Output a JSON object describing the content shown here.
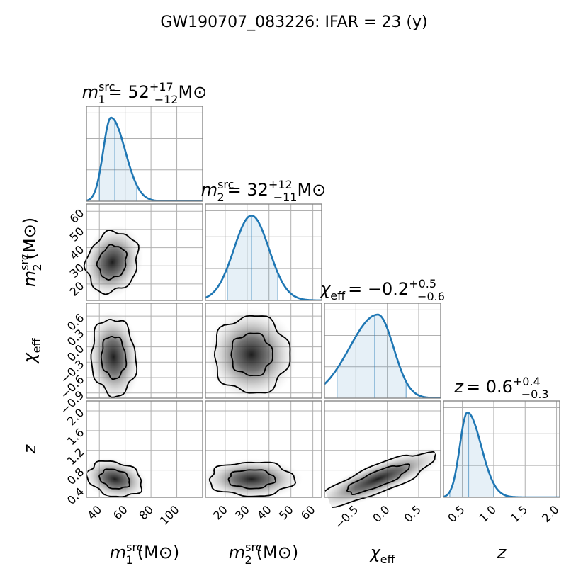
{
  "title": "GW190707_083226: IFAR = 23 (y)",
  "chart_data": {
    "type": "corner",
    "parameters": [
      {
        "key": "m1",
        "symbol": "m",
        "sub": "1",
        "sup": "src",
        "unit": "(M⊙)",
        "range": [
          30,
          120
        ],
        "ticks": [
          40,
          60,
          80,
          100
        ],
        "tick_labels": [
          "40",
          "60",
          "80",
          "100"
        ],
        "median": 52,
        "plus": "+17",
        "minus": "−12",
        "title_unit": "M⊙",
        "title_value": "= 52"
      },
      {
        "key": "m2",
        "symbol": "m",
        "sub": "2",
        "sup": "src",
        "unit": "(M⊙)",
        "range": [
          11,
          64
        ],
        "ticks": [
          20,
          30,
          40,
          50,
          60
        ],
        "tick_labels": [
          "20",
          "30",
          "40",
          "50",
          "60"
        ],
        "median": 32,
        "plus": "+12",
        "minus": "−11",
        "title_unit": "M⊙",
        "title_value": "= 32"
      },
      {
        "key": "chi_eff",
        "symbol": "χ",
        "sub": "eff",
        "sup": "",
        "unit": "",
        "range": [
          -1.0,
          0.85
        ],
        "ticks": [
          -0.5,
          0.0,
          0.5
        ],
        "tick_labels": [
          "−0.5",
          "0.0",
          "0.5"
        ],
        "y_ticks": [
          -0.9,
          -0.6,
          -0.3,
          0.0,
          0.3,
          0.6
        ],
        "y_tick_labels": [
          "−0.9",
          "−0.6",
          "−0.3",
          "0.0",
          "0.3",
          "0.6"
        ],
        "median": -0.2,
        "plus": "+0.5",
        "minus": "−0.6",
        "title_unit": "",
        "title_value": "= −0.2"
      },
      {
        "key": "z",
        "symbol": "z",
        "sub": "",
        "sup": "",
        "unit": "",
        "range": [
          0.2,
          2.05
        ],
        "ticks": [
          0.5,
          1.0,
          1.5,
          2.0
        ],
        "tick_labels": [
          "0.5",
          "1.0",
          "1.5",
          "2.0"
        ],
        "y_range": [
          0.25,
          2.2
        ],
        "y_ticks": [
          0.4,
          0.8,
          1.2,
          1.6,
          2.0
        ],
        "y_tick_labels": [
          "0.4",
          "0.8",
          "1.2",
          "1.6",
          "2.0"
        ],
        "median": 0.6,
        "plus": "+0.4",
        "minus": "−0.3",
        "title_unit": "",
        "title_value": "= 0.6"
      }
    ],
    "marginals": [
      {
        "param": "m1",
        "median": 52,
        "q_low": 40,
        "q_high": 69,
        "mode": 49,
        "sigma_left": 6,
        "sigma_right": 11
      },
      {
        "param": "m2",
        "median": 32,
        "q_low": 21,
        "q_high": 44,
        "mode": 32,
        "sigma_left": 8,
        "sigma_right": 8
      },
      {
        "param": "chi_eff",
        "median": -0.2,
        "q_low": -0.8,
        "q_high": 0.3,
        "mode": -0.15,
        "sigma_left": 0.45,
        "sigma_right": 0.25
      },
      {
        "param": "z",
        "median": 0.6,
        "q_low": 0.3,
        "q_high": 1.0,
        "mode": 0.58,
        "sigma_left": 0.12,
        "sigma_right": 0.22
      }
    ],
    "joint": [
      {
        "x": "m1",
        "y": "m2",
        "cx": 50,
        "cy": 32,
        "sx": 9,
        "sy": 8,
        "rho": -0.55
      },
      {
        "x": "m1",
        "y": "chi_eff",
        "cx": 51,
        "cy": -0.2,
        "sx": 8,
        "sy": 0.35,
        "rho": 0.1
      },
      {
        "x": "m2",
        "y": "chi_eff",
        "cx": 32,
        "cy": -0.15,
        "sx": 8,
        "sy": 0.35,
        "rho": 0.2
      },
      {
        "x": "m1",
        "y": "z",
        "cx": 52,
        "cy": 0.62,
        "sx": 10,
        "sy": 0.16,
        "rho": -0.35
      },
      {
        "x": "m2",
        "y": "z",
        "cx": 32,
        "cy": 0.62,
        "sx": 9,
        "sy": 0.16,
        "rho": 0.0
      },
      {
        "x": "chi_eff",
        "y": "z",
        "cx": -0.15,
        "cy": 0.62,
        "sx": 0.45,
        "sy": 0.13,
        "rho": 0.55
      }
    ],
    "contour_levels": [
      "50%",
      "90%"
    ]
  }
}
